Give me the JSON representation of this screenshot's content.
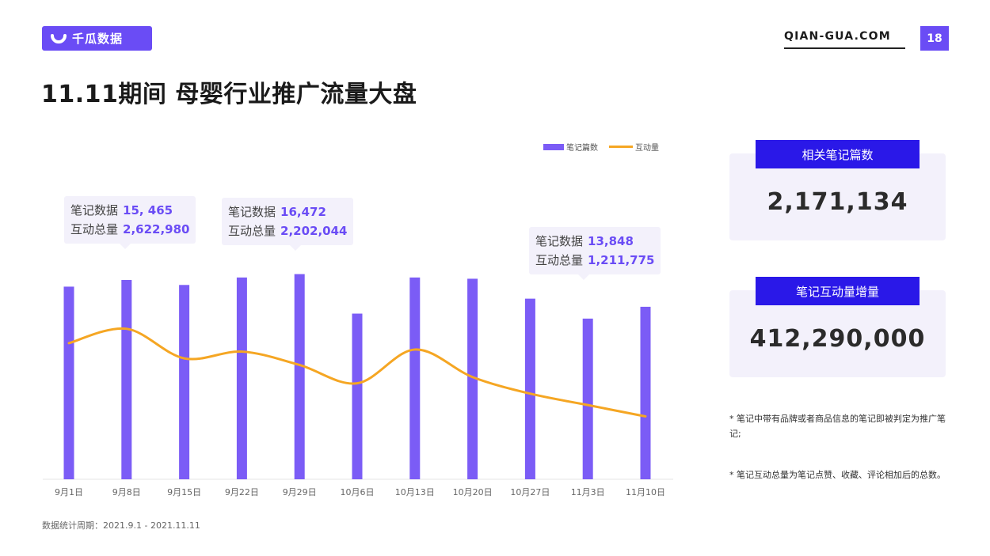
{
  "header": {
    "logo_text": "千瓜数据",
    "site": "QIAN-GUA.COM",
    "page_number": "18"
  },
  "title": "11.11期间 母婴行业推广流量大盘",
  "legend": {
    "bars": "笔记篇数",
    "line": "互动量"
  },
  "tooltips": [
    {
      "label1": "笔记数据",
      "value1": "15, 465",
      "label2": "互动总量",
      "value2": "2,622,980"
    },
    {
      "label1": "笔记数据",
      "value1": "16,472",
      "label2": "互动总量",
      "value2": "2,202,044"
    },
    {
      "label1": "笔记数据",
      "value1": "13,848",
      "label2": "互动总量",
      "value2": "1,211,775"
    }
  ],
  "cards": [
    {
      "title": "相关笔记篇数",
      "value": "2,171,134"
    },
    {
      "title": "笔记互动量增量",
      "value": "412,290,000"
    }
  ],
  "notes": [
    "* 笔记中带有品牌或者商品信息的笔记即被判定为推广笔记;",
    "* 笔记互动总量为笔记点赞、收藏、评论相加后的总数。"
  ],
  "footer": "数据统计周期：2021.9.1 - 2021.11.11",
  "colors": {
    "bar": "#7b5cf6",
    "line": "#f5a623",
    "accent": "#6a4cf5",
    "card_head": "#2a18e8"
  },
  "chart_data": {
    "type": "bar",
    "categories": [
      "9月1日",
      "9月8日",
      "9月15日",
      "9月22日",
      "9月29日",
      "10月6日",
      "10月13日",
      "10月20日",
      "10月27日",
      "11月3日",
      "11月10日"
    ],
    "series": [
      {
        "name": "笔记篇数",
        "type": "bar",
        "values": [
          15465,
          16000,
          15600,
          16200,
          16472,
          13300,
          16200,
          16100,
          14500,
          12900,
          13848
        ]
      },
      {
        "name": "互动量",
        "type": "line",
        "values": [
          2622980,
          2900000,
          2330000,
          2460000,
          2202044,
          1850000,
          2500000,
          1970000,
          1650000,
          1430000,
          1211775
        ]
      }
    ],
    "bar_ylim": [
      0,
      20000
    ],
    "line_ylim": [
      0,
      4800000
    ],
    "grid": false,
    "legend_position": "top-right"
  }
}
